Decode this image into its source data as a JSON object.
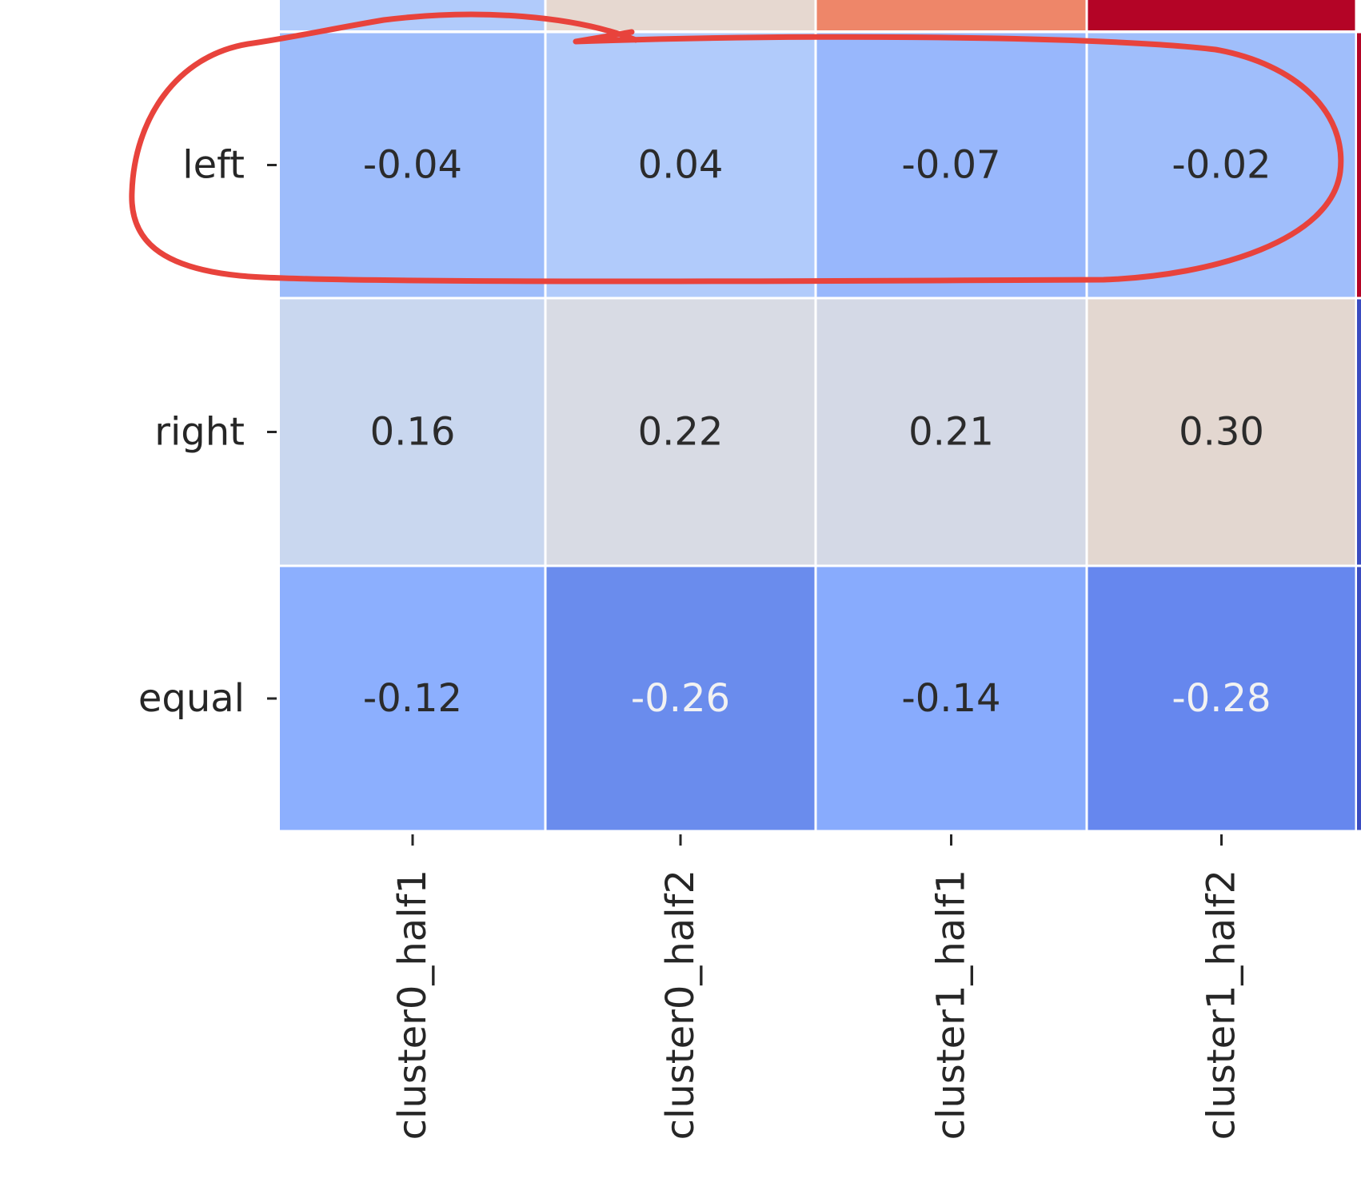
{
  "chart_data": {
    "type": "heatmap",
    "rows": [
      "left",
      "right",
      "equal"
    ],
    "columns": [
      "cluster0_half1",
      "cluster0_half2",
      "cluster1_half1",
      "cluster1_half2"
    ],
    "values": [
      [
        -0.04,
        0.04,
        -0.07,
        -0.02
      ],
      [
        0.16,
        0.22,
        0.21,
        0.3
      ],
      [
        -0.12,
        -0.26,
        -0.14,
        -0.28
      ]
    ],
    "cell_labels": [
      [
        "-0.04",
        "0.04",
        "-0.07",
        "-0.02"
      ],
      [
        "0.16",
        "0.22",
        "0.21",
        "0.30"
      ],
      [
        "-0.12",
        "-0.26",
        "-0.14",
        "-0.28"
      ]
    ],
    "colormap": "coolwarm",
    "cell_colors": [
      [
        "#9dbcfb",
        "#b1cbfb",
        "#98b7fc",
        "#a0befb"
      ],
      [
        "#c9d7ef",
        "#d8dbe4",
        "#d4d9e6",
        "#e3d7d0"
      ],
      [
        "#8caffe",
        "#6a8ced",
        "#88abfd",
        "#6687ee"
      ]
    ],
    "partial_top_row_colors": [
      "#b1cbfb",
      "#e6d8d0",
      "#ee8669",
      "#b40426"
    ],
    "annotation": {
      "shape": "hand-drawn ellipse",
      "color": "#e8433c",
      "highlighted_row": "left"
    },
    "grid": false
  }
}
